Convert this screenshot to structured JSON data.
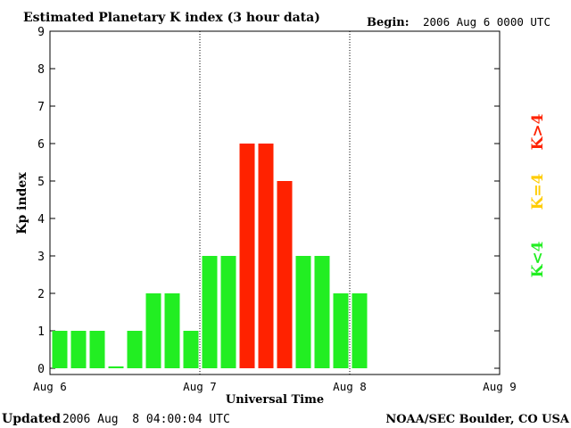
{
  "header": {
    "title": "Estimated Planetary K index (3 hour data)",
    "begin_label": "Begin:",
    "begin_value": "2006 Aug 6 0000 UTC"
  },
  "footer": {
    "updated_label": "Updated",
    "updated_value": "2006 Aug  8 04:00:04 UTC",
    "source": "NOAA/SEC Boulder, CO USA"
  },
  "legend": {
    "low": {
      "label": "K<4",
      "color": "#22ee22"
    },
    "mid": {
      "label": "K=4",
      "color": "#ffcc00"
    },
    "high": {
      "label": "K>4",
      "color": "#ff2200"
    }
  },
  "chart_data": {
    "type": "bar",
    "title": "Estimated Planetary K index (3 hour data)",
    "xlabel": "Universal Time",
    "ylabel": "Kp index",
    "ylim": [
      0,
      9
    ],
    "yticks": [
      "0",
      "1",
      "2",
      "3",
      "4",
      "5",
      "6",
      "7",
      "8",
      "9"
    ],
    "x_tick_labels": [
      "Aug 6",
      "Aug 7",
      "Aug 8",
      "Aug 9"
    ],
    "day_separators": [
      "Aug 7",
      "Aug 8"
    ],
    "slots_total": 24,
    "values": [
      1,
      1,
      1,
      0.05,
      1,
      2,
      2,
      1,
      3,
      3,
      6,
      6,
      5,
      3,
      3,
      2,
      2
    ],
    "threshold": 4,
    "colors": {
      "below": "#22ee22",
      "equal": "#ffcc00",
      "above": "#ff2200"
    }
  }
}
